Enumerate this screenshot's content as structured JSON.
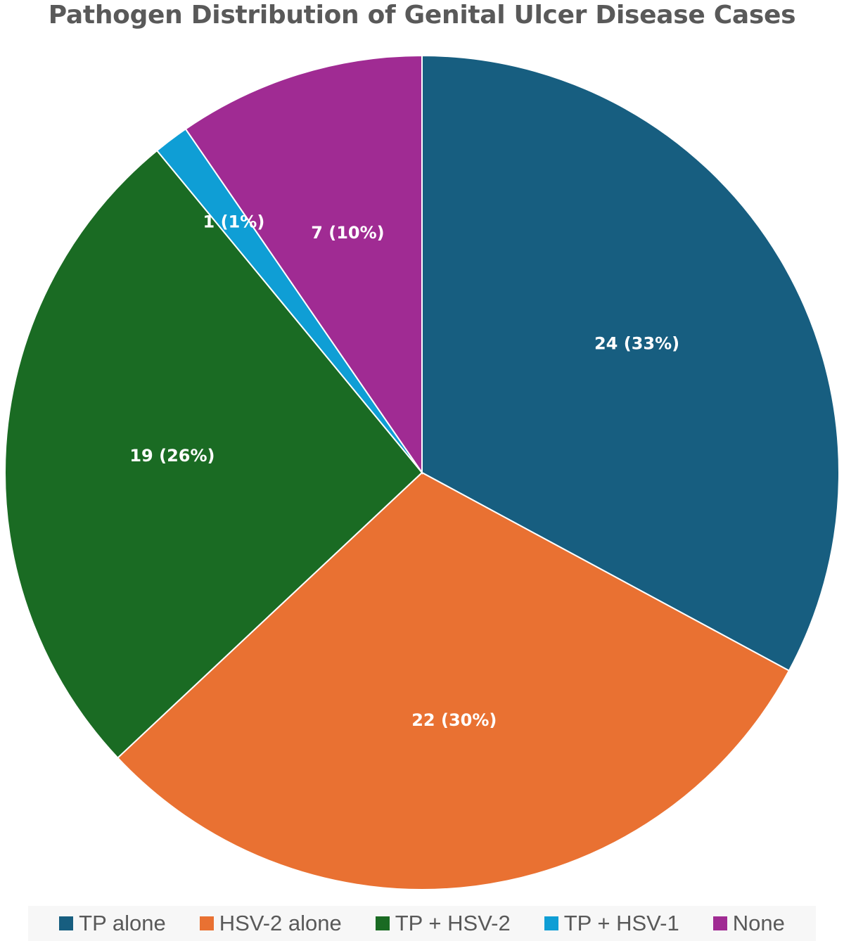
{
  "chart_data": {
    "type": "pie",
    "title": "Pathogen Distribution of Genital Ulcer Disease Cases",
    "start_angle": "12 o'clock, clockwise",
    "slices": [
      {
        "name": "TP alone",
        "value": 24,
        "label": "24 (33%)",
        "color": "#175E80"
      },
      {
        "name": "HSV-2 alone",
        "value": 22,
        "label": "22 (30%)",
        "color": "#E97132"
      },
      {
        "name": "TP + HSV-2",
        "value": 19,
        "label": "19 (26%)",
        "color": "#1A6B23"
      },
      {
        "name": "TP + HSV-1",
        "value": 1,
        "label": "1 (1%)",
        "color": "#0F9ED5"
      },
      {
        "name": "None",
        "value": 7,
        "label": "7 (10%)",
        "color": "#A02B93"
      }
    ],
    "legend": {
      "placement": "bottom",
      "entries": [
        "TP alone",
        "HSV-2 alone",
        "TP + HSV-2",
        "TP + HSV-1",
        "None"
      ]
    }
  }
}
